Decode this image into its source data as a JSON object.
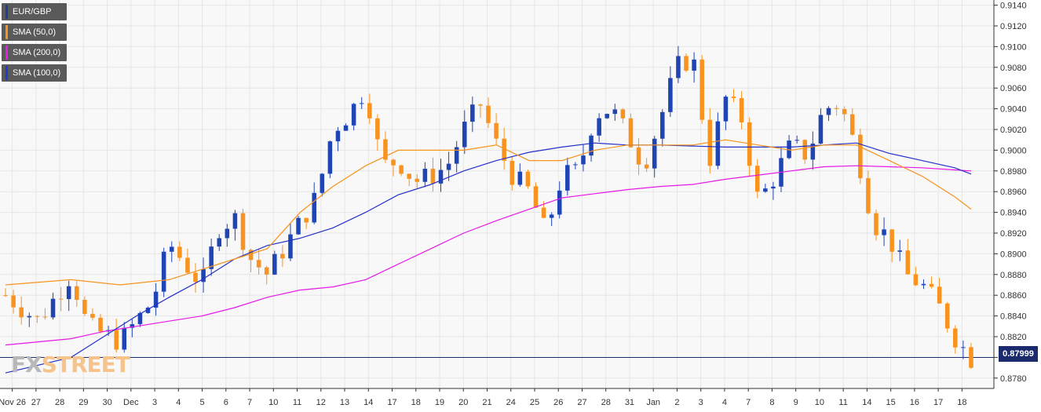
{
  "legend": [
    {
      "label": "EUR/GBP",
      "color": "#1f3b9e",
      "icon": "line-swatch"
    },
    {
      "label": "SMA (50,0)",
      "color": "#f7931e",
      "icon": "line-swatch"
    },
    {
      "label": "SMA (200,0)",
      "color": "#e61ee6",
      "icon": "line-swatch"
    },
    {
      "label": "SMA (100,0)",
      "color": "#1f3bd6",
      "icon": "line-swatch"
    }
  ],
  "current_price": "0.87999",
  "logo": {
    "fx": "FX",
    "street": "STREET"
  },
  "colors": {
    "up": "#1f45b5",
    "down": "#f7931e",
    "sma50": "#f7931e",
    "sma100": "#2230c8",
    "sma200": "#e619e6",
    "price_line": "#1a2a6c",
    "grid": "#e6e6e6"
  },
  "chart_data": {
    "type": "candlestick",
    "title": "",
    "xlabel": "",
    "ylabel": "",
    "ylim": [
      0.877,
      0.9145
    ],
    "y_ticks": [
      "0.9140",
      "0.9120",
      "0.9100",
      "0.9080",
      "0.9060",
      "0.9040",
      "0.9020",
      "0.9000",
      "0.8980",
      "0.8960",
      "0.8940",
      "0.8920",
      "0.8900",
      "0.8880",
      "0.8860",
      "0.8840",
      "0.8820",
      "0.8800",
      "0.8780"
    ],
    "x_ticks": [
      "Nov 26",
      "27",
      "28",
      "29",
      "30",
      "Dec",
      "3",
      "4",
      "5",
      "6",
      "7",
      "10",
      "11",
      "12",
      "13",
      "14",
      "17",
      "18",
      "19",
      "20",
      "21",
      "24",
      "25",
      "26",
      "27",
      "28",
      "31",
      "Jan",
      "2",
      "3",
      "4",
      "7",
      "8",
      "9",
      "10",
      "11",
      "14",
      "15",
      "16",
      "17",
      "18"
    ],
    "grid": true,
    "legend_position": "top-left",
    "close_anchor_points": [
      [
        0,
        0.886
      ],
      [
        2,
        0.8835
      ],
      [
        4,
        0.888
      ],
      [
        5,
        0.883
      ],
      [
        7,
        0.8815
      ],
      [
        9,
        0.8855
      ],
      [
        10,
        0.891
      ],
      [
        12,
        0.887
      ],
      [
        13,
        0.8925
      ],
      [
        14,
        0.8935
      ],
      [
        15,
        0.8895
      ],
      [
        16,
        0.888
      ],
      [
        17,
        0.8905
      ],
      [
        18,
        0.893
      ],
      [
        19,
        0.8955
      ],
      [
        20,
        0.902
      ],
      [
        21,
        0.9035
      ],
      [
        22,
        0.906
      ],
      [
        23,
        0.8985
      ],
      [
        24,
        0.899
      ],
      [
        25,
        0.897
      ],
      [
        26,
        0.8975
      ],
      [
        27,
        0.8985
      ],
      [
        28,
        0.902
      ],
      [
        29,
        0.9045
      ],
      [
        30,
        0.9005
      ],
      [
        31,
        0.8975
      ],
      [
        32,
        0.896
      ],
      [
        33,
        0.892
      ],
      [
        34,
        0.8975
      ],
      [
        35,
        0.898
      ],
      [
        36,
        0.9035
      ],
      [
        37,
        0.904
      ],
      [
        38,
        0.9015
      ],
      [
        39,
        0.8985
      ],
      [
        40,
        0.903
      ],
      [
        41,
        0.908
      ],
      [
        42,
        0.909
      ],
      [
        43,
        0.899
      ],
      [
        44,
        0.905
      ],
      [
        45,
        0.903
      ],
      [
        46,
        0.895
      ],
      [
        47,
        0.8975
      ],
      [
        48,
        0.9005
      ],
      [
        49,
        0.8995
      ],
      [
        50,
        0.904
      ],
      [
        51,
        0.9045
      ],
      [
        52,
        0.9
      ],
      [
        53,
        0.893
      ],
      [
        54,
        0.8915
      ],
      [
        55,
        0.888
      ],
      [
        56,
        0.887
      ],
      [
        57,
        0.885
      ],
      [
        58,
        0.882
      ],
      [
        59,
        0.8799
      ]
    ],
    "sma50": [
      [
        0,
        0.887
      ],
      [
        4,
        0.8875
      ],
      [
        7,
        0.887
      ],
      [
        10,
        0.8875
      ],
      [
        14,
        0.8895
      ],
      [
        16,
        0.8905
      ],
      [
        18,
        0.894
      ],
      [
        20,
        0.8965
      ],
      [
        22,
        0.8985
      ],
      [
        24,
        0.9
      ],
      [
        26,
        0.9
      ],
      [
        28,
        0.9
      ],
      [
        30,
        0.9005
      ],
      [
        32,
        0.899
      ],
      [
        34,
        0.899
      ],
      [
        36,
        0.9
      ],
      [
        38,
        0.9005
      ],
      [
        40,
        0.9005
      ],
      [
        42,
        0.9005
      ],
      [
        44,
        0.901
      ],
      [
        46,
        0.9005
      ],
      [
        48,
        0.9
      ],
      [
        50,
        0.9005
      ],
      [
        52,
        0.9005
      ],
      [
        54,
        0.899
      ],
      [
        56,
        0.8975
      ],
      [
        58,
        0.8955
      ],
      [
        59,
        0.8943
      ]
    ],
    "sma100": [
      [
        0,
        0.8785
      ],
      [
        4,
        0.88
      ],
      [
        6,
        0.882
      ],
      [
        8,
        0.884
      ],
      [
        10,
        0.8858
      ],
      [
        12,
        0.8875
      ],
      [
        14,
        0.8895
      ],
      [
        16,
        0.8908
      ],
      [
        18,
        0.8915
      ],
      [
        20,
        0.8925
      ],
      [
        22,
        0.894
      ],
      [
        24,
        0.8957
      ],
      [
        26,
        0.8967
      ],
      [
        28,
        0.898
      ],
      [
        30,
        0.899
      ],
      [
        32,
        0.8998
      ],
      [
        34,
        0.9003
      ],
      [
        36,
        0.9007
      ],
      [
        38,
        0.9005
      ],
      [
        40,
        0.9005
      ],
      [
        42,
        0.9004
      ],
      [
        44,
        0.9003
      ],
      [
        46,
        0.9003
      ],
      [
        48,
        0.9003
      ],
      [
        50,
        0.9005
      ],
      [
        52,
        0.9007
      ],
      [
        54,
        0.8997
      ],
      [
        56,
        0.899
      ],
      [
        58,
        0.8983
      ],
      [
        59,
        0.8977
      ]
    ],
    "sma200": [
      [
        0,
        0.8812
      ],
      [
        4,
        0.8818
      ],
      [
        6,
        0.8825
      ],
      [
        8,
        0.883
      ],
      [
        10,
        0.8835
      ],
      [
        12,
        0.884
      ],
      [
        14,
        0.8848
      ],
      [
        16,
        0.8858
      ],
      [
        18,
        0.8865
      ],
      [
        20,
        0.8868
      ],
      [
        22,
        0.8875
      ],
      [
        24,
        0.889
      ],
      [
        26,
        0.8905
      ],
      [
        28,
        0.892
      ],
      [
        30,
        0.8932
      ],
      [
        32,
        0.8943
      ],
      [
        34,
        0.8954
      ],
      [
        36,
        0.8958
      ],
      [
        38,
        0.8962
      ],
      [
        40,
        0.8965
      ],
      [
        42,
        0.8967
      ],
      [
        44,
        0.8972
      ],
      [
        46,
        0.8976
      ],
      [
        48,
        0.898
      ],
      [
        50,
        0.8984
      ],
      [
        52,
        0.8985
      ],
      [
        54,
        0.8984
      ],
      [
        56,
        0.8983
      ],
      [
        58,
        0.8981
      ],
      [
        59,
        0.898
      ]
    ],
    "current_price_value": 0.87999
  }
}
